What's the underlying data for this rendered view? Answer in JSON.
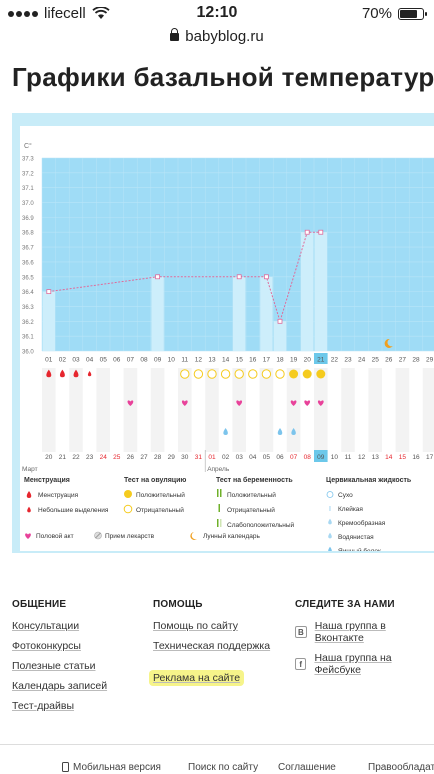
{
  "status_bar": {
    "carrier": "lifecell",
    "time": "12:10",
    "battery": "70%"
  },
  "browser": {
    "url": "babyblog.ru"
  },
  "page": {
    "title": "Графики базальной температуры"
  },
  "chart_data": {
    "type": "line",
    "ylabel": "C°",
    "ylim": [
      36.0,
      37.3
    ],
    "yticks": [
      "36.0",
      "36.1",
      "36.2",
      "36.3",
      "36.4",
      "36.5",
      "36.6",
      "36.7",
      "36.8",
      "36.9",
      "37.0",
      "37.1",
      "37.2",
      "37.3"
    ],
    "day_labels": [
      "01",
      "02",
      "03",
      "04",
      "05",
      "06",
      "07",
      "08",
      "09",
      "10",
      "11",
      "12",
      "13",
      "14",
      "15",
      "16",
      "17",
      "18",
      "19",
      "20",
      "21",
      "22",
      "23",
      "24",
      "25",
      "26",
      "27",
      "28",
      "29"
    ],
    "highlighted_day": "21",
    "points": [
      {
        "day": 1,
        "temp": 36.4
      },
      {
        "day": 9,
        "temp": 36.5
      },
      {
        "day": 15,
        "temp": 36.5
      },
      {
        "day": 17,
        "temp": 36.5
      },
      {
        "day": 18,
        "temp": 36.2
      },
      {
        "day": 20,
        "temp": 36.8
      },
      {
        "day": 21,
        "temp": 36.8
      }
    ],
    "moon_day": 26,
    "menstruation_days": [
      1,
      2,
      3,
      4
    ],
    "menstruation_small_days": [
      4
    ],
    "ovulation_positive_days": [
      19,
      20,
      21
    ],
    "ovulation_negative_days": [
      11,
      12,
      13,
      14,
      15,
      16,
      17,
      18
    ],
    "intercourse_days": [
      7,
      11,
      15,
      19,
      20,
      21
    ],
    "cervical_days": [
      14,
      18,
      19
    ],
    "calendar_dates": [
      "20",
      "21",
      "22",
      "23",
      "24",
      "25",
      "26",
      "27",
      "28",
      "29",
      "30",
      "31",
      "01",
      "02",
      "03",
      "04",
      "05",
      "06",
      "07",
      "08",
      "09",
      "10",
      "11",
      "12",
      "13",
      "14",
      "15",
      "16",
      "17"
    ],
    "red_dates": [
      "24",
      "25",
      "31",
      "01",
      "07",
      "08",
      "14",
      "15"
    ],
    "month_labels": [
      "Март",
      "Апрель"
    ],
    "legend": {
      "menstruation": {
        "title": "Менструация",
        "items": [
          "Менструация",
          "Небольшие выделения"
        ]
      },
      "ovulation": {
        "title": "Тест на овуляцию",
        "items": [
          "Положительный",
          "Отрицательный"
        ]
      },
      "pregnancy": {
        "title": "Тест на беременность",
        "items": [
          "Положительный",
          "Отрицательный",
          "Слабоположительный"
        ]
      },
      "cervical": {
        "title": "Цервикальная жидкость",
        "items": [
          "Сухо",
          "Клейкая",
          "Кремообразная",
          "Водянистая",
          "Яичный белок"
        ]
      },
      "bottom": [
        "Половой акт",
        "Прием лекарств",
        "Лунный календарь"
      ]
    },
    "colors": {
      "bar": "#cdeefb",
      "band": "#9fdcf6",
      "line": "#e06a9a",
      "pink": "#e8429a",
      "red": "#e6262e",
      "yellow": "#f5cb1e",
      "green": "#6fb02a"
    }
  },
  "footer": {
    "community": {
      "title": "ОБЩЕНИЕ",
      "links": [
        "Консультации",
        "Фотоконкурсы",
        "Полезные статьи",
        "Календарь записей",
        "Тест-драйвы"
      ]
    },
    "help": {
      "title": "ПОМОЩЬ",
      "links": [
        "Помощь по сайту",
        "Техническая поддержка",
        "Реклама на сайте"
      ]
    },
    "follow": {
      "title": "СЛЕДИТЕ ЗА НАМИ",
      "links": [
        "Наша группа в Вконтакте",
        "Наша группа на Фейсбуке"
      ]
    },
    "bottom_links": [
      "Мобильная версия",
      "Поиск по сайту",
      "Соглашение",
      "Правообладатель"
    ]
  }
}
